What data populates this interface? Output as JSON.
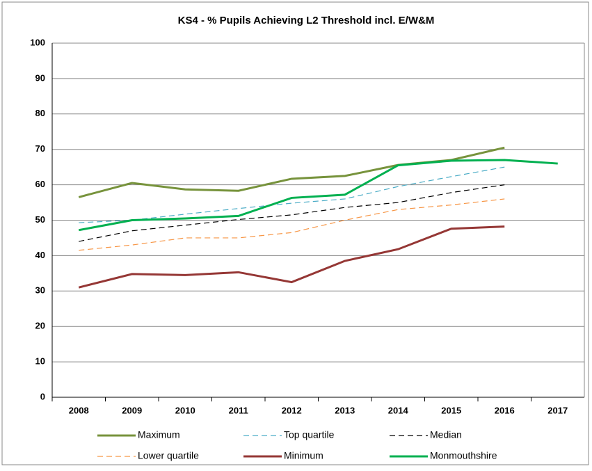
{
  "chart_data": {
    "type": "line",
    "title": "KS4 - % Pupils Achieving L2 Threshold incl. E/W&M",
    "categories": [
      "2008",
      "2009",
      "2010",
      "2011",
      "2012",
      "2013",
      "2014",
      "2015",
      "2016",
      "2017"
    ],
    "series": [
      {
        "name": "Maximum",
        "color": "#77933c",
        "dashed": false,
        "width": 3,
        "values": [
          56.5,
          60.5,
          58.7,
          58.3,
          61.7,
          62.5,
          65.6,
          67,
          70.5,
          null
        ]
      },
      {
        "name": "Top quartile",
        "color": "#4bacc6",
        "dashed": true,
        "width": 1.2,
        "values": [
          49.3,
          50,
          51.7,
          53.3,
          54.8,
          56,
          59.5,
          62.3,
          65,
          null
        ]
      },
      {
        "name": "Median",
        "color": "#000000",
        "dashed": true,
        "width": 1.2,
        "values": [
          44,
          47,
          48.6,
          50.2,
          51.5,
          53.6,
          55,
          57.8,
          60,
          null
        ]
      },
      {
        "name": "Lower quartile",
        "color": "#f79646",
        "dashed": true,
        "width": 1.2,
        "values": [
          41.5,
          43,
          45,
          45,
          46.5,
          50,
          53,
          54.3,
          56,
          null
        ]
      },
      {
        "name": "Minimum",
        "color": "#953735",
        "dashed": false,
        "width": 3,
        "values": [
          31,
          34.8,
          34.5,
          35.3,
          32.5,
          38.5,
          41.8,
          47.6,
          48.2,
          null
        ]
      },
      {
        "name": "Monmouthshire",
        "color": "#00b050",
        "dashed": false,
        "width": 3,
        "values": [
          47.2,
          50,
          50.5,
          51.2,
          56.3,
          57.2,
          65.5,
          66.8,
          67,
          66
        ]
      }
    ],
    "ylim": [
      0,
      100
    ],
    "yticks": [
      0,
      10,
      20,
      30,
      40,
      50,
      60,
      70,
      80,
      90,
      100
    ],
    "grid": true
  }
}
